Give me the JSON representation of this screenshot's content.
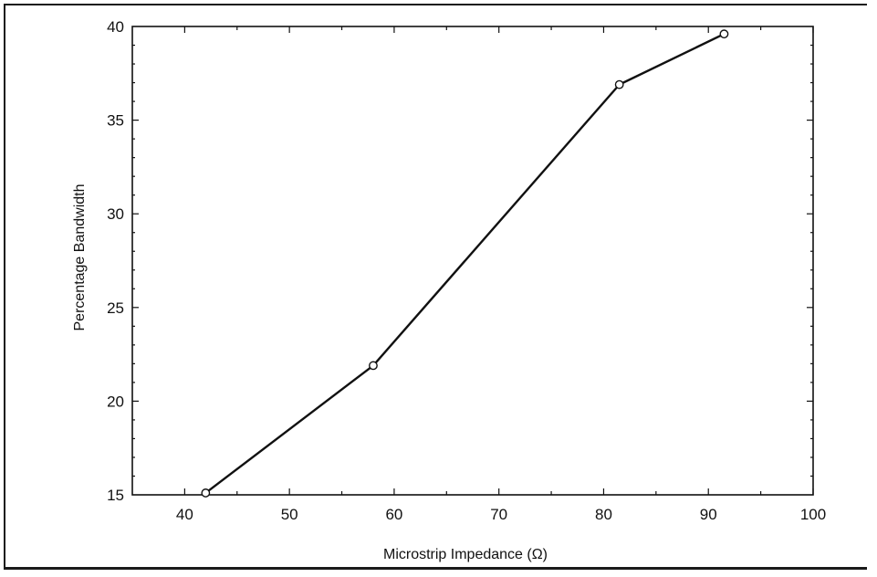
{
  "chart_data": {
    "type": "line",
    "title": "",
    "xlabel": "Microstrip Impedance (Ω)",
    "ylabel": "Percentage Bandwidth",
    "xlim": [
      35,
      100
    ],
    "ylim": [
      15,
      40
    ],
    "x_ticks": [
      40,
      50,
      60,
      70,
      80,
      90,
      100
    ],
    "y_ticks": [
      15,
      20,
      25,
      30,
      35,
      40
    ],
    "grid": false,
    "legend": "none",
    "marker": "open-circle",
    "series": [
      {
        "x": [
          42,
          58,
          81.5,
          91.5
        ],
        "values": [
          15.1,
          21.9,
          36.9,
          39.6
        ]
      }
    ]
  },
  "colors": {
    "line": "#111111",
    "marker_fill": "#ffffff",
    "frame": "#1a1a1a"
  }
}
